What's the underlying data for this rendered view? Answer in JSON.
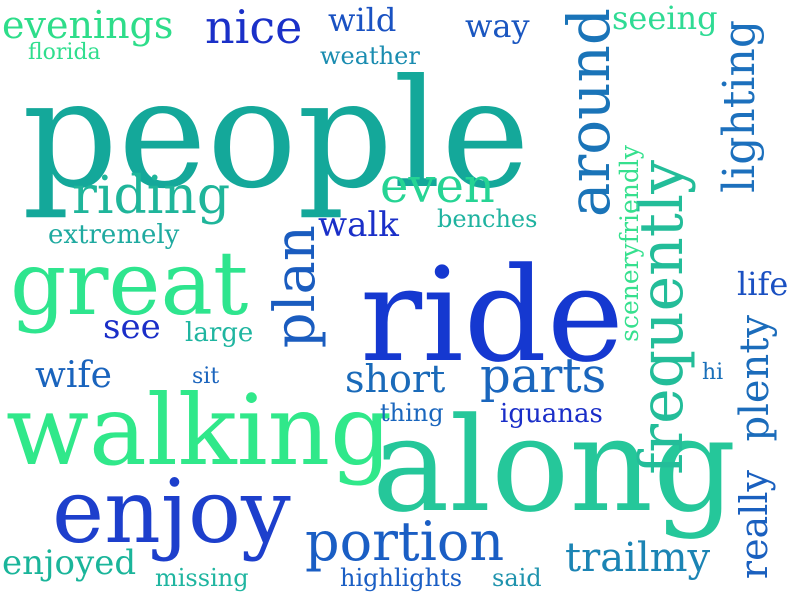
{
  "words": [
    {
      "id": "people",
      "text": "people",
      "color": "#14a89a"
    },
    {
      "id": "ride",
      "text": "ride",
      "color": "#1538d0"
    },
    {
      "id": "along",
      "text": "along",
      "color": "#25c79a"
    },
    {
      "id": "walking",
      "text": "walking",
      "color": "#30e88a"
    },
    {
      "id": "enjoy",
      "text": "enjoy",
      "color": "#1d3fcc"
    },
    {
      "id": "great",
      "text": "great",
      "color": "#2ee58e"
    },
    {
      "id": "portion",
      "text": "portion",
      "color": "#1a5ec4"
    },
    {
      "id": "frequently",
      "text": "frequently",
      "color": "#23bd99"
    },
    {
      "id": "around",
      "text": "around",
      "color": "#1a74b8"
    },
    {
      "id": "plan",
      "text": "plan",
      "color": "#1a5cbf"
    },
    {
      "id": "lighting",
      "text": "lighting",
      "color": "#1c70bd"
    },
    {
      "id": "evenings",
      "text": "evenings",
      "color": "#2edd8a"
    },
    {
      "id": "nice",
      "text": "nice",
      "color": "#1a30c8"
    },
    {
      "id": "riding",
      "text": "riding",
      "color": "#1fb59a"
    },
    {
      "id": "even",
      "text": "even",
      "color": "#26d494"
    },
    {
      "id": "parts",
      "text": "parts",
      "color": "#1a66bd"
    },
    {
      "id": "trailmy",
      "text": "trailmy",
      "color": "#1b84b4"
    },
    {
      "id": "really",
      "text": "really",
      "color": "#1a60bf"
    },
    {
      "id": "plenty",
      "text": "plenty",
      "color": "#1b6cbb"
    },
    {
      "id": "short",
      "text": "short",
      "color": "#1a6ab9"
    },
    {
      "id": "enjoyed",
      "text": "enjoyed",
      "color": "#1ab59a"
    },
    {
      "id": "wild",
      "text": "wild",
      "color": "#1a52c2"
    },
    {
      "id": "way",
      "text": "way",
      "color": "#1a56c0"
    },
    {
      "id": "seeing",
      "text": "seeing",
      "color": "#2fdb94"
    },
    {
      "id": "florida",
      "text": "florida",
      "color": "#2fde8e"
    },
    {
      "id": "weather",
      "text": "weather",
      "color": "#1a8cb0"
    },
    {
      "id": "walk",
      "text": "walk",
      "color": "#1a2fc8"
    },
    {
      "id": "benches",
      "text": "benches",
      "color": "#1fb3a0"
    },
    {
      "id": "extremely",
      "text": "extremely",
      "color": "#1faaa0"
    },
    {
      "id": "see",
      "text": "see",
      "color": "#1a2ec8"
    },
    {
      "id": "large",
      "text": "large",
      "color": "#1fb5a0"
    },
    {
      "id": "wife",
      "text": "wife",
      "color": "#1a64bd"
    },
    {
      "id": "sit",
      "text": "sit",
      "color": "#1a64bd"
    },
    {
      "id": "thing",
      "text": "thing",
      "color": "#1a66bd"
    },
    {
      "id": "iguanas",
      "text": "iguanas",
      "color": "#1a2ec8"
    },
    {
      "id": "hi",
      "text": "hi",
      "color": "#1a70ba"
    },
    {
      "id": "life",
      "text": "life",
      "color": "#1a50c2"
    },
    {
      "id": "sceneryfriendly",
      "text": "sceneryfriendly",
      "color": "#36e08e"
    },
    {
      "id": "missing",
      "text": "missing",
      "color": "#1fb5a0"
    },
    {
      "id": "highlights",
      "text": "highlights",
      "color": "#1a5ec4"
    },
    {
      "id": "said",
      "text": "said",
      "color": "#1f93ad"
    }
  ]
}
